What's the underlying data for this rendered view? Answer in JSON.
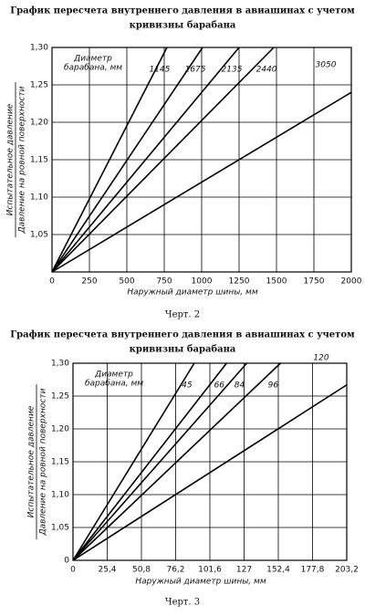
{
  "chart_data": [
    {
      "type": "line",
      "title": [
        "График пересчета внутреннего давления в авиашинах с учетом",
        "кривизны барабана"
      ],
      "legend_title": [
        "Диаметр",
        "барабана, мм"
      ],
      "x_label": "Наружный диаметр шины, мм",
      "y_label": [
        "Испытательное давление",
        "Давление на ровной поверхности"
      ],
      "caption": "Черт. 2",
      "xlim": [
        0,
        2000
      ],
      "ylim": [
        1.0,
        1.3
      ],
      "xticks": [
        0,
        250,
        500,
        750,
        1000,
        1250,
        1500,
        1750,
        2000
      ],
      "yticks": [
        {
          "value": 1.05,
          "label": "1,05"
        },
        {
          "value": 1.1,
          "label": "1,10"
        },
        {
          "value": 1.15,
          "label": "1,15"
        },
        {
          "value": 1.2,
          "label": "1,20"
        },
        {
          "value": 1.25,
          "label": "1,25"
        },
        {
          "value": 1.3,
          "label": "1,30"
        }
      ],
      "grid": true,
      "series": [
        {
          "name": "1145",
          "color": "#000000",
          "x": [
            0,
            768
          ],
          "values": [
            1.0,
            1.3
          ]
        },
        {
          "name": "1675",
          "color": "#000000",
          "x": [
            0,
            1006
          ],
          "values": [
            1.0,
            1.3
          ]
        },
        {
          "name": "2135",
          "color": "#000000",
          "x": [
            0,
            1250
          ],
          "values": [
            1.0,
            1.3
          ]
        },
        {
          "name": "2440",
          "color": "#000000",
          "x": [
            0,
            1482
          ],
          "values": [
            1.0,
            1.3
          ]
        },
        {
          "name": "3050",
          "color": "#000000",
          "x": [
            0,
            2000
          ],
          "values": [
            1.0,
            1.24
          ]
        }
      ]
    },
    {
      "type": "line",
      "title": [
        "График пересчета внутреннего давления в авиашинах с учетом",
        "кривизны барабана"
      ],
      "legend_title": [
        "Диаметр",
        "барабана, мм"
      ],
      "x_label": "Наружный диаметр шины, мм",
      "y_label": [
        "Испытательное давление",
        "Давление на ровной поверхности"
      ],
      "caption": "Черт. 3",
      "xlim": [
        0,
        203.2
      ],
      "ylim": [
        1.0,
        1.3
      ],
      "xticks": [
        0,
        {
          "value": 25.4,
          "label": "25,4"
        },
        {
          "value": 50.8,
          "label": "50,8"
        },
        {
          "value": 76.2,
          "label": "76,2"
        },
        {
          "value": 101.6,
          "label": "101,6"
        },
        127,
        {
          "value": 152.4,
          "label": "152,4"
        },
        {
          "value": 177.8,
          "label": "177,8"
        },
        {
          "value": 203.2,
          "label": "203,2"
        }
      ],
      "yticks": [
        {
          "value": 1.0,
          "label": "0"
        },
        {
          "value": 1.05,
          "label": "1,05"
        },
        {
          "value": 1.1,
          "label": "1,10"
        },
        {
          "value": 1.15,
          "label": "1,15"
        },
        {
          "value": 1.2,
          "label": "1,20"
        },
        {
          "value": 1.25,
          "label": "1,25"
        },
        {
          "value": 1.3,
          "label": "1,30"
        }
      ],
      "grid": true,
      "series": [
        {
          "name": "45",
          "color": "#000000",
          "x": [
            0,
            90
          ],
          "values": [
            1.0,
            1.3
          ]
        },
        {
          "name": "66",
          "color": "#000000",
          "x": [
            0,
            114
          ],
          "values": [
            1.0,
            1.3
          ]
        },
        {
          "name": "84",
          "color": "#000000",
          "x": [
            0,
            129
          ],
          "values": [
            1.0,
            1.3
          ]
        },
        {
          "name": "96",
          "color": "#000000",
          "x": [
            0,
            154
          ],
          "values": [
            1.0,
            1.3
          ]
        },
        {
          "name": "120",
          "color": "#000000",
          "x": [
            0,
            203.2
          ],
          "values": [
            1.0,
            1.267
          ]
        }
      ]
    }
  ]
}
